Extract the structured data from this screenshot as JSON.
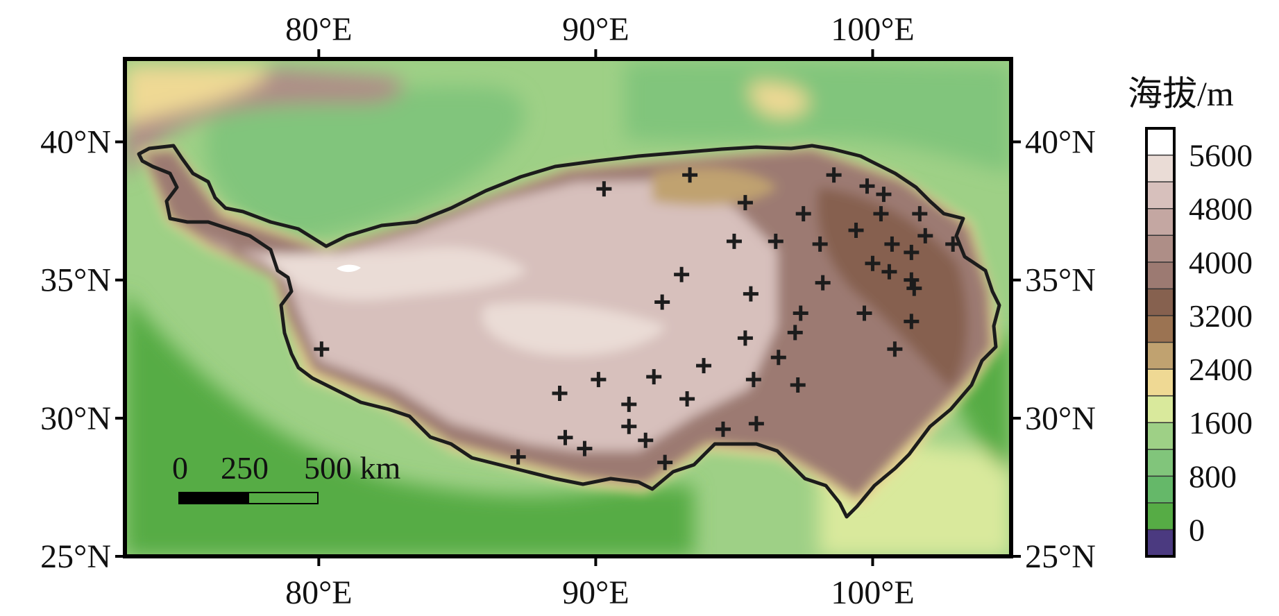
{
  "map": {
    "longitude_ticks": [
      {
        "value": 80,
        "label": "80°E"
      },
      {
        "value": 90,
        "label": "90°E"
      },
      {
        "value": 100,
        "label": "100°E"
      }
    ],
    "latitude_ticks": [
      {
        "value": 25,
        "label": "25°N"
      },
      {
        "value": 30,
        "label": "30°N"
      },
      {
        "value": 35,
        "label": "35°N"
      },
      {
        "value": 40,
        "label": "40°N"
      }
    ],
    "extent": {
      "lon": [
        73,
        105
      ],
      "lat": [
        25,
        43
      ]
    },
    "stations_marker": "plus-marker",
    "stations": [
      [
        90.3,
        38.3
      ],
      [
        93.4,
        38.8
      ],
      [
        95.4,
        37.8
      ],
      [
        98.6,
        38.8
      ],
      [
        99.8,
        38.4
      ],
      [
        100.4,
        38.1
      ],
      [
        97.5,
        37.4
      ],
      [
        100.3,
        37.4
      ],
      [
        101.7,
        37.4
      ],
      [
        99.4,
        36.8
      ],
      [
        101.9,
        36.6
      ],
      [
        102.9,
        36.3
      ],
      [
        95.0,
        36.4
      ],
      [
        96.5,
        36.4
      ],
      [
        98.1,
        36.3
      ],
      [
        100.7,
        36.3
      ],
      [
        101.4,
        36.0
      ],
      [
        100.0,
        35.6
      ],
      [
        100.6,
        35.3
      ],
      [
        93.1,
        35.2
      ],
      [
        98.2,
        34.9
      ],
      [
        101.4,
        35.0
      ],
      [
        101.5,
        34.7
      ],
      [
        95.6,
        34.5
      ],
      [
        92.4,
        34.2
      ],
      [
        97.4,
        33.8
      ],
      [
        99.7,
        33.8
      ],
      [
        101.4,
        33.5
      ],
      [
        97.2,
        33.1
      ],
      [
        95.4,
        32.9
      ],
      [
        80.1,
        32.5
      ],
      [
        100.8,
        32.5
      ],
      [
        96.6,
        32.2
      ],
      [
        93.9,
        31.9
      ],
      [
        92.1,
        31.5
      ],
      [
        90.1,
        31.4
      ],
      [
        95.7,
        31.4
      ],
      [
        97.3,
        31.2
      ],
      [
        88.7,
        30.9
      ],
      [
        93.3,
        30.7
      ],
      [
        91.2,
        30.5
      ],
      [
        91.2,
        29.7
      ],
      [
        95.8,
        29.8
      ],
      [
        94.6,
        29.6
      ],
      [
        88.9,
        29.3
      ],
      [
        91.8,
        29.2
      ],
      [
        89.6,
        28.9
      ],
      [
        87.2,
        28.6
      ],
      [
        92.5,
        28.4
      ]
    ]
  },
  "colorbar": {
    "title": "海拔/m",
    "labels": [
      "5600",
      "4800",
      "4000",
      "3200",
      "2400",
      "1600",
      "800",
      "0"
    ],
    "colors": [
      "#ffffff",
      "#eadcd6",
      "#d7c0bc",
      "#c4a7a2",
      "#ae8e87",
      "#9c7a72",
      "#86614f",
      "#9b7352",
      "#c0a270",
      "#efd994",
      "#d9e99c",
      "#9ed086",
      "#81c57b",
      "#65b869",
      "#56ac45",
      "#4b3a80"
    ]
  },
  "scalebar": {
    "labels": [
      "0",
      "250",
      "500 km"
    ]
  }
}
